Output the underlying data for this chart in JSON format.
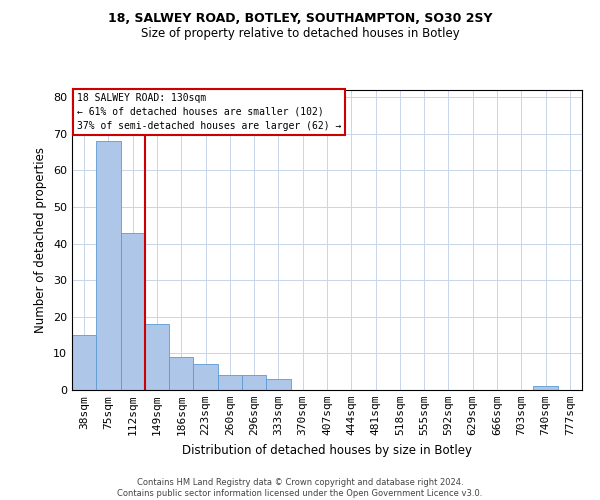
{
  "title1": "18, SALWEY ROAD, BOTLEY, SOUTHAMPTON, SO30 2SY",
  "title2": "Size of property relative to detached houses in Botley",
  "xlabel": "Distribution of detached houses by size in Botley",
  "ylabel": "Number of detached properties",
  "categories": [
    "38sqm",
    "75sqm",
    "112sqm",
    "149sqm",
    "186sqm",
    "223sqm",
    "260sqm",
    "296sqm",
    "333sqm",
    "370sqm",
    "407sqm",
    "444sqm",
    "481sqm",
    "518sqm",
    "555sqm",
    "592sqm",
    "629sqm",
    "666sqm",
    "703sqm",
    "740sqm",
    "777sqm"
  ],
  "values": [
    15,
    68,
    43,
    18,
    9,
    7,
    4,
    4,
    3,
    0,
    0,
    0,
    0,
    0,
    0,
    0,
    0,
    0,
    0,
    1,
    0
  ],
  "bar_color": "#aec6e8",
  "bar_edge_color": "#5b9bd5",
  "vline_x": 2.5,
  "vline_color": "#cc0000",
  "annotation_line1": "18 SALWEY ROAD: 130sqm",
  "annotation_line2": "← 61% of detached houses are smaller (102)",
  "annotation_line3": "37% of semi-detached houses are larger (62) →",
  "box_edge_color": "#cc0000",
  "ylim": [
    0,
    82
  ],
  "yticks": [
    0,
    10,
    20,
    30,
    40,
    50,
    60,
    70,
    80
  ],
  "footer": "Contains HM Land Registry data © Crown copyright and database right 2024.\nContains public sector information licensed under the Open Government Licence v3.0.",
  "bg_color": "#ffffff",
  "grid_color": "#c8d4e8"
}
